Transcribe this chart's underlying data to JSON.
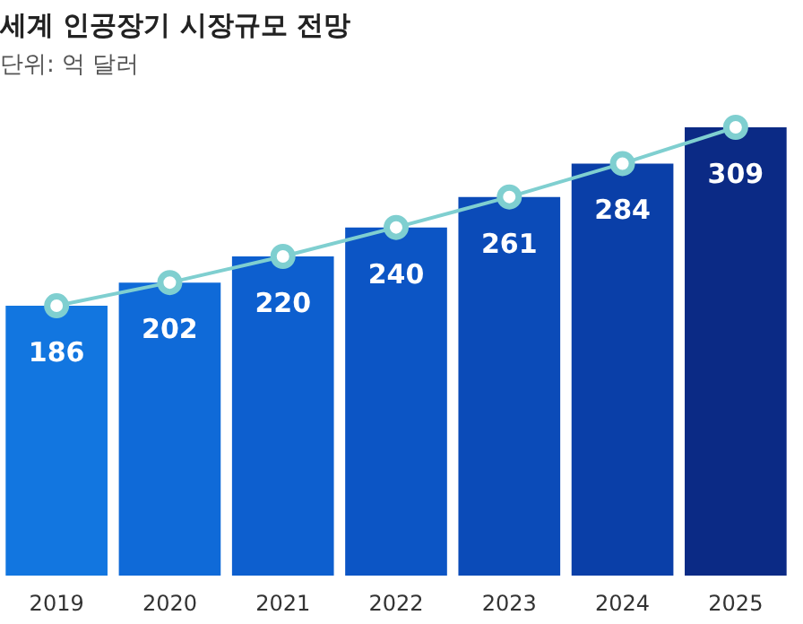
{
  "chart_data": {
    "type": "bar",
    "title": "세계 인공장기 시장규모 전망",
    "subtitle": "단위: 억 달러",
    "categories": [
      "2019",
      "2020",
      "2021",
      "2022",
      "2023",
      "2024",
      "2025"
    ],
    "series": [
      {
        "colors": [
          "#1276e0",
          "#0f6ad8",
          "#0d5fcf",
          "#0c55c5",
          "#0b4bb8",
          "#0a3fa8",
          "#0b2a85"
        ],
        "values": [
          186,
          202,
          220,
          240,
          261,
          284,
          309
        ],
        "value_labels": [
          "186",
          "202",
          "220",
          "240",
          "261",
          "284",
          "309"
        ]
      },
      {
        "type": "line",
        "color": "#7fcfd0",
        "marker": "circle",
        "values": [
          186,
          202,
          220,
          240,
          261,
          284,
          309
        ],
        "value_labels": [
          null,
          null,
          null,
          null,
          null,
          null,
          null
        ]
      }
    ],
    "tick_labels": "x"
  }
}
